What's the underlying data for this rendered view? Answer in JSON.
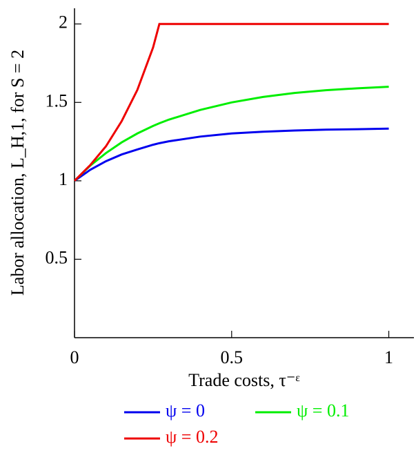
{
  "chart_data": {
    "type": "line",
    "xlabel": "Trade costs, τ⁻ᵋ",
    "ylabel": "Labor allocation, L_H,1, for S = 2",
    "x": [
      0,
      0.05,
      0.1,
      0.15,
      0.2,
      0.25,
      0.27,
      0.3,
      0.4,
      0.5,
      0.6,
      0.7,
      0.8,
      0.9,
      1
    ],
    "series": [
      {
        "name": "ψ = 0",
        "color": "#0000ee",
        "values": [
          1,
          1.07,
          1.125,
          1.168,
          1.2,
          1.23,
          1.24,
          1.252,
          1.282,
          1.302,
          1.313,
          1.321,
          1.326,
          1.329,
          1.333
        ]
      },
      {
        "name": "ψ = 0.1",
        "color": "#00ee00",
        "values": [
          1,
          1.097,
          1.177,
          1.245,
          1.302,
          1.35,
          1.367,
          1.39,
          1.452,
          1.5,
          1.535,
          1.56,
          1.578,
          1.59,
          1.6
        ]
      },
      {
        "name": "ψ = 0.2",
        "color": "#ee0000",
        "values": [
          1,
          1.1,
          1.22,
          1.38,
          1.58,
          1.85,
          2,
          2,
          2,
          2,
          2,
          2,
          2,
          2,
          2
        ]
      }
    ],
    "xlim": [
      0,
      1.08
    ],
    "ylim": [
      0,
      2.1
    ],
    "xticks": [
      0,
      0.5,
      1
    ],
    "yticks": [
      0.5,
      1,
      1.5,
      2
    ]
  }
}
